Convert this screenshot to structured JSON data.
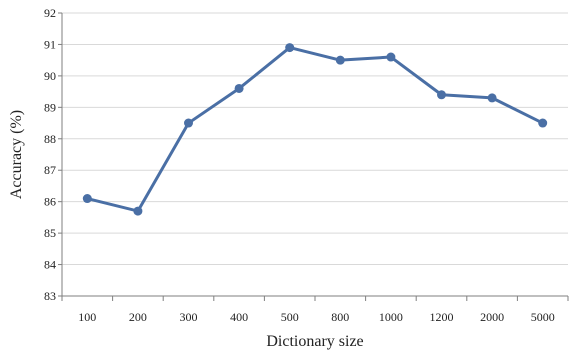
{
  "chart_data": {
    "type": "line",
    "title": "",
    "xlabel": "Dictionary size",
    "ylabel": "Accuracy (%)",
    "categories": [
      "100",
      "200",
      "300",
      "400",
      "500",
      "800",
      "1000",
      "1200",
      "2000",
      "5000"
    ],
    "series": [
      {
        "values": [
          86.1,
          85.7,
          88.5,
          89.6,
          90.9,
          90.5,
          90.6,
          89.4,
          89.3,
          88.5
        ]
      }
    ],
    "ylim": [
      83,
      92
    ],
    "yticks": [
      "83",
      "84",
      "85",
      "86",
      "87",
      "88",
      "89",
      "90",
      "91",
      "92"
    ],
    "grid": "horizontal",
    "line_color": "#4a6fa5",
    "grid_color": "#d9d9d9",
    "axis_color": "#7f7f7f"
  }
}
